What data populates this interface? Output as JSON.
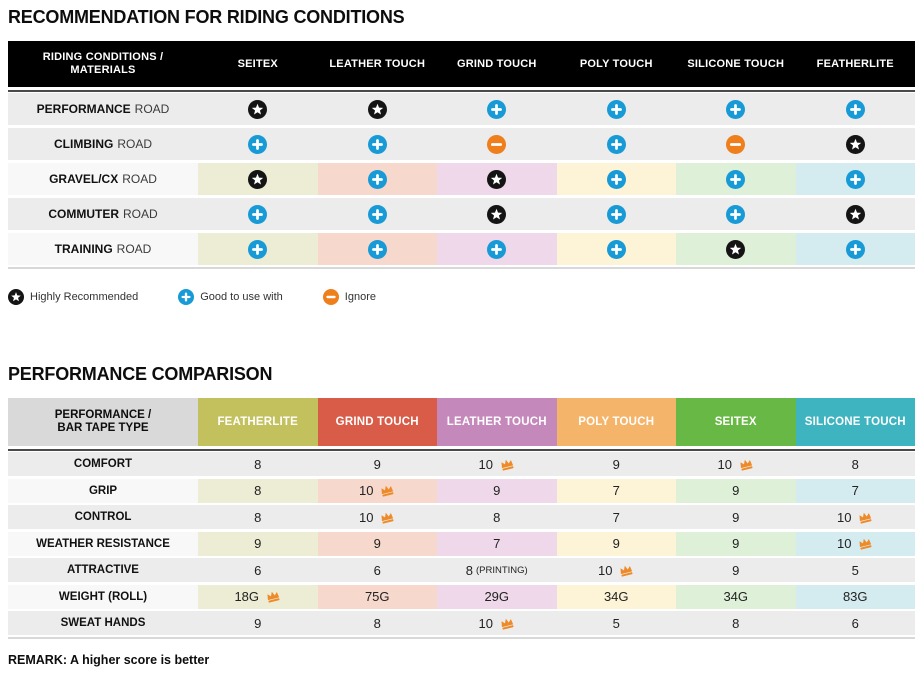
{
  "palette": {
    "table1_header_bg": "#000000",
    "row_gray": "#ececec",
    "row_label_light": "#f8f8f8",
    "divider_dark": "#4a4a4a",
    "divider_light": "#d8d8d8",
    "icon_star_bg": "#141414",
    "icon_plus_bg": "#189ad6",
    "icon_minus_bg": "#ee7f1c",
    "crown_color": "#ee8a28",
    "t2_corner_bg": "#d9d9d9"
  },
  "t1_column_tints": [
    "#edecd4",
    "#f7d8cd",
    "#eed8e9",
    "#fdf3d6",
    "#def0d8",
    "#d4ecef"
  ],
  "chart_data": [
    {
      "type": "table",
      "title": "RECOMMENDATION FOR RIDING CONDITIONS",
      "corner_lines": [
        "RIDING CONDITIONS /",
        "MATERIALS"
      ],
      "columns": [
        "SEITEX",
        "LEATHER TOUCH",
        "GRIND TOUCH",
        "POLY TOUCH",
        "SILICONE TOUCH",
        "FEATHERLITE"
      ],
      "mark_meanings": {
        "star": "Highly Recommended",
        "plus": "Good to use with",
        "minus": "Ignore"
      },
      "rows": [
        {
          "condition": "PERFORMANCE",
          "suffix": "ROAD",
          "tinted": false,
          "marks": [
            "star",
            "star",
            "plus",
            "plus",
            "plus",
            "plus"
          ]
        },
        {
          "condition": "CLIMBING",
          "suffix": "ROAD",
          "tinted": false,
          "marks": [
            "plus",
            "plus",
            "minus",
            "plus",
            "minus",
            "star"
          ]
        },
        {
          "condition": "GRAVEL/CX",
          "suffix": "ROAD",
          "tinted": true,
          "marks": [
            "star",
            "plus",
            "star",
            "plus",
            "plus",
            "plus"
          ]
        },
        {
          "condition": "COMMUTER",
          "suffix": "ROAD",
          "tinted": false,
          "marks": [
            "plus",
            "plus",
            "star",
            "plus",
            "plus",
            "star"
          ]
        },
        {
          "condition": "TRAINING",
          "suffix": "ROAD",
          "tinted": true,
          "marks": [
            "plus",
            "plus",
            "plus",
            "plus",
            "star",
            "plus"
          ]
        }
      ],
      "legend": [
        {
          "icon": "star",
          "label": "Highly Recommended"
        },
        {
          "icon": "plus",
          "label": "Good to use with"
        },
        {
          "icon": "minus",
          "label": "Ignore"
        }
      ]
    },
    {
      "type": "table",
      "title": "PERFORMANCE COMPARISON",
      "corner_lines": [
        "PERFORMANCE /",
        "BAR TAPE TYPE"
      ],
      "columns": [
        {
          "label": "FEATHERLITE",
          "color": "#c3c05e",
          "tint": "#edecd4"
        },
        {
          "label": "GRIND TOUCH",
          "color": "#d85c48",
          "tint": "#f7d8cd"
        },
        {
          "label": "LEATHER TOUCH",
          "color": "#c588bb",
          "tint": "#eed8e9"
        },
        {
          "label": "POLY TOUCH",
          "color": "#f4b469",
          "tint": "#fdf3d6"
        },
        {
          "label": "SEITEX",
          "color": "#68b845",
          "tint": "#def0d8"
        },
        {
          "label": "SILICONE TOUCH",
          "color": "#3db4c0",
          "tint": "#d4ecef"
        }
      ],
      "rows": [
        {
          "metric": "COMFORT",
          "tinted": false,
          "cells": [
            {
              "v": "8"
            },
            {
              "v": "9"
            },
            {
              "v": "10",
              "crown": true
            },
            {
              "v": "9"
            },
            {
              "v": "10",
              "crown": true
            },
            {
              "v": "8"
            }
          ]
        },
        {
          "metric": "GRIP",
          "tinted": true,
          "cells": [
            {
              "v": "8"
            },
            {
              "v": "10",
              "crown": true
            },
            {
              "v": "9"
            },
            {
              "v": "7"
            },
            {
              "v": "9"
            },
            {
              "v": "7"
            }
          ]
        },
        {
          "metric": "CONTROL",
          "tinted": false,
          "cells": [
            {
              "v": "8"
            },
            {
              "v": "10",
              "crown": true
            },
            {
              "v": "8"
            },
            {
              "v": "7"
            },
            {
              "v": "9"
            },
            {
              "v": "10",
              "crown": true
            }
          ]
        },
        {
          "metric": "WEATHER RESISTANCE",
          "tinted": true,
          "cells": [
            {
              "v": "9"
            },
            {
              "v": "9"
            },
            {
              "v": "7"
            },
            {
              "v": "9"
            },
            {
              "v": "9"
            },
            {
              "v": "10",
              "crown": true
            }
          ]
        },
        {
          "metric": "ATTRACTIVE",
          "tinted": false,
          "cells": [
            {
              "v": "6"
            },
            {
              "v": "6"
            },
            {
              "v": "8",
              "note": "(PRINTING)"
            },
            {
              "v": "10",
              "crown": true
            },
            {
              "v": "9"
            },
            {
              "v": "5"
            }
          ]
        },
        {
          "metric": "WEIGHT (ROLL)",
          "tinted": true,
          "cells": [
            {
              "v": "18G",
              "crown": true
            },
            {
              "v": "75G"
            },
            {
              "v": "29G"
            },
            {
              "v": "34G"
            },
            {
              "v": "34G"
            },
            {
              "v": "83G"
            }
          ]
        },
        {
          "metric": "SWEAT HANDS",
          "tinted": false,
          "cells": [
            {
              "v": "9"
            },
            {
              "v": "8"
            },
            {
              "v": "10",
              "crown": true
            },
            {
              "v": "5"
            },
            {
              "v": "8"
            },
            {
              "v": "6"
            }
          ]
        }
      ],
      "remark": "REMARK: A higher score is better"
    }
  ]
}
